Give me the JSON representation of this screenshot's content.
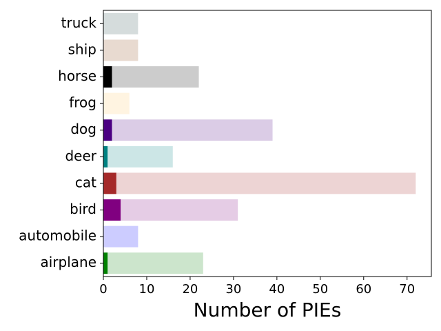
{
  "chart_data": {
    "type": "bar",
    "orientation": "horizontal",
    "stacked": true,
    "title": "",
    "xlabel": "Number of PIEs",
    "ylabel": "",
    "xlim": [
      0,
      75.6
    ],
    "xticks": [
      0,
      10,
      20,
      30,
      40,
      50,
      60,
      70
    ],
    "grid": false,
    "legend": "none",
    "categories": [
      "airplane",
      "automobile",
      "bird",
      "cat",
      "deer",
      "dog",
      "frog",
      "horse",
      "ship",
      "truck"
    ],
    "series": [
      {
        "values": [
          1,
          0,
          4,
          3,
          1,
          2,
          0,
          2,
          0,
          0
        ],
        "colors": [
          "#008000",
          "#0000ff",
          "#800080",
          "#a52a2a",
          "#008080",
          "#4b0082",
          "#ffe4b5",
          "#000000",
          "#8b4513",
          "#2f4f4f"
        ]
      },
      {
        "values": [
          22,
          8,
          27,
          69,
          15,
          37,
          6,
          20,
          8,
          8
        ],
        "colors": [
          "#cce5cc",
          "#ccccff",
          "#e5cce5",
          "#edd4d4",
          "#cce6e6",
          "#dbcce6",
          "#fff4e1",
          "#cccccc",
          "#e8dad0",
          "#d5dcdc"
        ]
      }
    ]
  }
}
